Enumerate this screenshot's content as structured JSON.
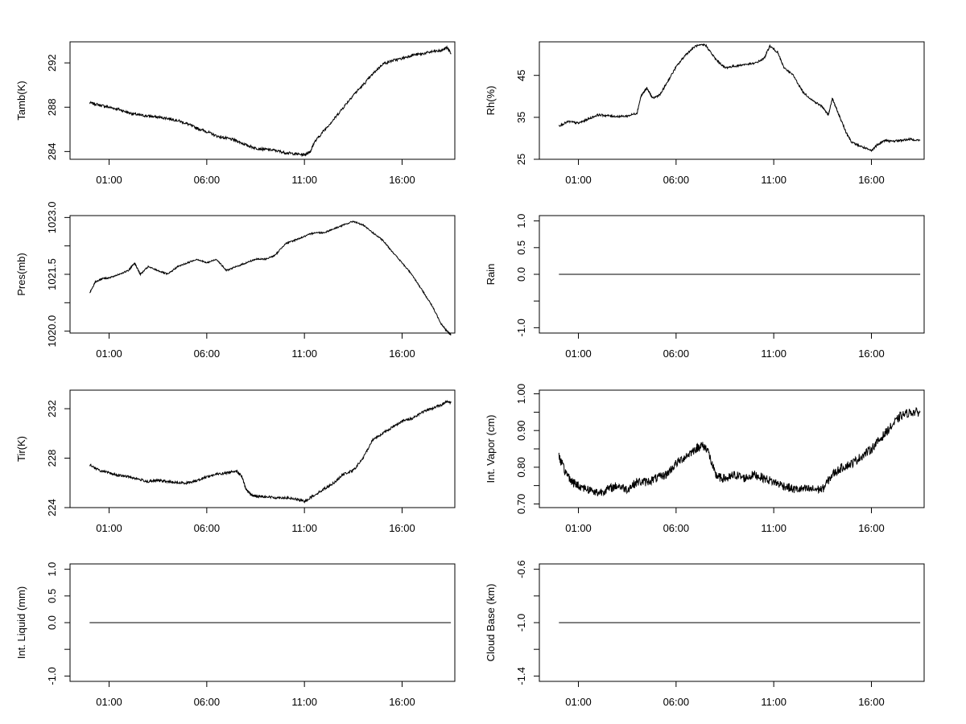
{
  "chart_data": [
    {
      "id": "tamb",
      "type": "line",
      "ylabel": "Tamb(K)",
      "ylim": [
        283.3,
        293.9
      ],
      "yticks": [
        284,
        288,
        292
      ],
      "ytick_labels": [
        "284",
        "288",
        "292"
      ],
      "xlim": [
        -1.0,
        18.7
      ],
      "xticks": [
        1,
        6,
        11,
        16
      ],
      "xtick_labels": [
        "01:00",
        "06:00",
        "11:00",
        "16:00"
      ],
      "grid": false,
      "series": [
        {
          "x": [
            0.0,
            0.5,
            1.0,
            1.5,
            2.0,
            2.5,
            3.0,
            3.5,
            4.0,
            4.5,
            5.0,
            5.5,
            6.0,
            6.5,
            7.0,
            7.5,
            8.0,
            8.5,
            9.0,
            9.5,
            10.0,
            10.5,
            11.0,
            11.3,
            11.5,
            12.0,
            12.5,
            13.0,
            13.5,
            14.0,
            14.5,
            15.0,
            15.5,
            16.0,
            16.5,
            17.0,
            17.5,
            18.0,
            18.3,
            18.5
          ],
          "y": [
            288.4,
            288.2,
            288.0,
            287.8,
            287.5,
            287.3,
            287.2,
            287.1,
            287.0,
            286.8,
            286.5,
            286.1,
            285.8,
            285.4,
            285.2,
            285.0,
            284.6,
            284.3,
            284.2,
            284.1,
            283.9,
            283.8,
            283.7,
            284.0,
            284.8,
            285.9,
            286.9,
            288.0,
            289.1,
            290.0,
            291.0,
            291.9,
            292.2,
            292.4,
            292.7,
            292.8,
            293.0,
            293.1,
            293.4,
            292.9
          ]
        }
      ]
    },
    {
      "id": "rh",
      "type": "line",
      "ylabel": "Rh(%)",
      "ylim": [
        25.0,
        53.0
      ],
      "yticks": [
        25,
        35,
        45
      ],
      "ytick_labels": [
        "25",
        "35",
        "45"
      ],
      "xlim": [
        -1.0,
        18.7
      ],
      "xticks": [
        1,
        6,
        11,
        16
      ],
      "xtick_labels": [
        "01:00",
        "06:00",
        "11:00",
        "16:00"
      ],
      "grid": false,
      "series": [
        {
          "x": [
            0.0,
            0.5,
            1.0,
            1.5,
            2.0,
            2.5,
            3.0,
            3.5,
            4.0,
            4.2,
            4.5,
            4.8,
            5.2,
            5.5,
            6.0,
            6.5,
            7.0,
            7.5,
            8.0,
            8.5,
            9.0,
            9.5,
            10.0,
            10.5,
            10.8,
            11.2,
            11.5,
            12.0,
            12.5,
            13.0,
            13.5,
            13.8,
            14.0,
            14.3,
            14.7,
            15.0,
            15.5,
            16.0,
            16.3,
            16.7,
            17.0,
            17.5,
            18.0,
            18.5
          ],
          "y": [
            33.0,
            34.0,
            33.6,
            34.6,
            35.6,
            35.4,
            35.2,
            35.3,
            36.0,
            40.0,
            42.0,
            39.5,
            40.5,
            43.0,
            47.0,
            50.0,
            52.0,
            52.3,
            49.0,
            46.8,
            47.2,
            47.6,
            47.8,
            49.0,
            52.0,
            50.5,
            47.0,
            45.0,
            41.0,
            39.0,
            37.5,
            35.5,
            39.5,
            36.0,
            31.5,
            29.0,
            28.0,
            27.0,
            28.5,
            29.5,
            29.3,
            29.5,
            29.8,
            29.5
          ]
        }
      ]
    },
    {
      "id": "pres",
      "type": "line",
      "ylabel": "Pres(mb)",
      "ylim": [
        1019.95,
        1023.05
      ],
      "yticks": [
        1020.0,
        1021.5,
        1023.0
      ],
      "ytick_labels": [
        "1020.0",
        "1021.5",
        "1023.0"
      ],
      "minor_yticks": [
        1020.75,
        1022.25
      ],
      "xlim": [
        -1.0,
        18.7
      ],
      "xticks": [
        1,
        6,
        11,
        16
      ],
      "xtick_labels": [
        "01:00",
        "06:00",
        "11:00",
        "16:00"
      ],
      "grid": false,
      "series": [
        {
          "x": [
            0.0,
            0.3,
            0.7,
            1.0,
            1.5,
            2.0,
            2.3,
            2.6,
            3.0,
            3.5,
            4.0,
            4.5,
            5.0,
            5.5,
            6.0,
            6.5,
            7.0,
            7.5,
            8.0,
            8.5,
            9.0,
            9.5,
            10.0,
            10.5,
            11.0,
            11.5,
            12.0,
            12.5,
            13.0,
            13.5,
            14.0,
            14.5,
            15.0,
            15.5,
            16.0,
            16.5,
            17.0,
            17.5,
            18.0,
            18.3,
            18.5
          ],
          "y": [
            1021.0,
            1021.3,
            1021.4,
            1021.4,
            1021.5,
            1021.6,
            1021.8,
            1021.5,
            1021.7,
            1021.6,
            1021.5,
            1021.7,
            1021.8,
            1021.9,
            1021.8,
            1021.9,
            1021.6,
            1021.7,
            1021.8,
            1021.9,
            1021.9,
            1022.0,
            1022.3,
            1022.4,
            1022.5,
            1022.6,
            1022.6,
            1022.7,
            1022.8,
            1022.9,
            1022.8,
            1022.6,
            1022.4,
            1022.1,
            1021.8,
            1021.5,
            1021.1,
            1020.7,
            1020.2,
            1020.0,
            1019.9
          ]
        }
      ]
    },
    {
      "id": "rain",
      "type": "line",
      "ylabel": "Rain",
      "ylim": [
        -1.1,
        1.1
      ],
      "yticks": [
        -1.0,
        0.0,
        0.5,
        1.0
      ],
      "ytick_labels": [
        "-1.0",
        "0.0",
        "0.5",
        "1.0"
      ],
      "minor_yticks": [
        -0.5
      ],
      "xlim": [
        -1.0,
        18.7
      ],
      "xticks": [
        1,
        6,
        11,
        16
      ],
      "xtick_labels": [
        "01:00",
        "06:00",
        "11:00",
        "16:00"
      ],
      "grid": false,
      "series": [
        {
          "x": [
            0.0,
            18.5
          ],
          "y": [
            0.0,
            0.0
          ]
        }
      ]
    },
    {
      "id": "tir",
      "type": "line",
      "ylabel": "Tir(K)",
      "ylim": [
        224.0,
        233.5
      ],
      "yticks": [
        224,
        228,
        232
      ],
      "ytick_labels": [
        "224",
        "228",
        "232"
      ],
      "xlim": [
        -1.0,
        18.7
      ],
      "xticks": [
        1,
        6,
        11,
        16
      ],
      "xtick_labels": [
        "01:00",
        "06:00",
        "11:00",
        "16:00"
      ],
      "grid": false,
      "series": [
        {
          "x": [
            0.0,
            0.5,
            1.0,
            1.5,
            2.0,
            2.5,
            3.0,
            3.5,
            4.0,
            4.5,
            5.0,
            5.5,
            6.0,
            6.5,
            7.0,
            7.5,
            7.8,
            8.0,
            8.3,
            8.6,
            9.0,
            9.5,
            10.0,
            10.5,
            11.0,
            11.5,
            12.0,
            12.5,
            13.0,
            13.5,
            14.0,
            14.5,
            15.0,
            15.5,
            16.0,
            16.5,
            17.0,
            17.5,
            18.0,
            18.3,
            18.5
          ],
          "y": [
            227.5,
            227.0,
            226.8,
            226.6,
            226.5,
            226.3,
            226.1,
            226.2,
            226.1,
            226.0,
            226.0,
            226.2,
            226.5,
            226.7,
            226.8,
            227.0,
            226.5,
            225.5,
            225.0,
            224.9,
            224.9,
            224.8,
            224.8,
            224.7,
            224.5,
            225.0,
            225.5,
            226.0,
            226.7,
            227.0,
            228.0,
            229.5,
            230.0,
            230.5,
            231.0,
            231.2,
            231.7,
            232.0,
            232.3,
            232.6,
            232.5
          ]
        }
      ]
    },
    {
      "id": "intvapor",
      "type": "line",
      "ylabel": "Int. Vapor (cm)",
      "ylim": [
        0.69,
        1.01
      ],
      "yticks": [
        0.7,
        0.8,
        0.9,
        1.0
      ],
      "ytick_labels": [
        "0.70",
        "0.80",
        "0.90",
        "1.00"
      ],
      "minor_yticks": [
        0.75,
        0.85,
        0.95
      ],
      "xlim": [
        -1.0,
        18.7
      ],
      "xticks": [
        1,
        6,
        11,
        16
      ],
      "xtick_labels": [
        "01:00",
        "06:00",
        "11:00",
        "16:00"
      ],
      "grid": false,
      "series": [
        {
          "x": [
            0.0,
            0.3,
            0.7,
            1.0,
            1.5,
            2.0,
            2.5,
            3.0,
            3.5,
            4.0,
            4.5,
            5.0,
            5.5,
            6.0,
            6.5,
            7.0,
            7.3,
            7.6,
            8.0,
            8.3,
            8.7,
            9.0,
            9.5,
            10.0,
            10.5,
            11.0,
            11.5,
            12.0,
            12.5,
            13.0,
            13.5,
            14.0,
            14.5,
            15.0,
            15.5,
            16.0,
            16.5,
            17.0,
            17.5,
            18.0,
            18.5
          ],
          "y": [
            0.83,
            0.79,
            0.76,
            0.75,
            0.74,
            0.73,
            0.74,
            0.75,
            0.74,
            0.76,
            0.76,
            0.77,
            0.78,
            0.81,
            0.83,
            0.85,
            0.86,
            0.85,
            0.78,
            0.77,
            0.77,
            0.78,
            0.77,
            0.78,
            0.77,
            0.76,
            0.75,
            0.74,
            0.74,
            0.74,
            0.74,
            0.78,
            0.8,
            0.81,
            0.83,
            0.85,
            0.88,
            0.91,
            0.94,
            0.95,
            0.95
          ]
        }
      ]
    },
    {
      "id": "intliquid",
      "type": "line",
      "ylabel": "Int. Liquid (mm)",
      "ylim": [
        -1.1,
        1.1
      ],
      "yticks": [
        -1.0,
        0.0,
        0.5,
        1.0
      ],
      "ytick_labels": [
        "-1.0",
        "0.0",
        "0.5",
        "1.0"
      ],
      "minor_yticks": [
        -0.5
      ],
      "xlim": [
        -1.0,
        18.7
      ],
      "xticks": [
        1,
        6,
        11,
        16
      ],
      "xtick_labels": [
        "01:00",
        "06:00",
        "11:00",
        "16:00"
      ],
      "grid": false,
      "series": [
        {
          "x": [
            0.0,
            18.5
          ],
          "y": [
            0.0,
            0.0
          ]
        }
      ]
    },
    {
      "id": "cloudbase",
      "type": "line",
      "ylabel": "Cloud Base (km)",
      "ylim": [
        -1.44,
        -0.56
      ],
      "yticks": [
        -1.4,
        -1.0,
        -0.6
      ],
      "ytick_labels": [
        "-1.4",
        "-1.0",
        "-0.6"
      ],
      "minor_yticks": [
        -1.2,
        -0.8
      ],
      "xlim": [
        -1.0,
        18.7
      ],
      "xticks": [
        1,
        6,
        11,
        16
      ],
      "xtick_labels": [
        "01:00",
        "06:00",
        "11:00",
        "16:00"
      ],
      "grid": false,
      "series": [
        {
          "x": [
            0.0,
            18.5
          ],
          "y": [
            -1.0,
            -1.0
          ]
        }
      ]
    }
  ]
}
